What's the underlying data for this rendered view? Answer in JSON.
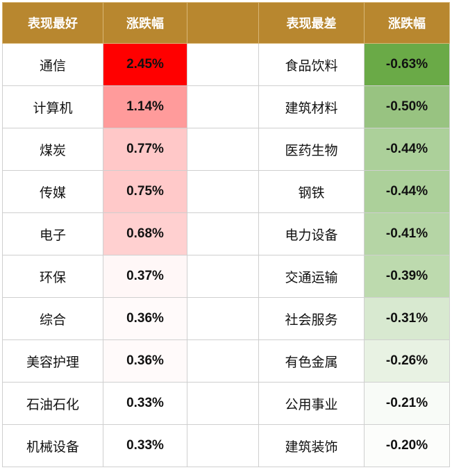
{
  "table": {
    "headers": {
      "best_name": "表现最好",
      "best_change": "涨跌幅",
      "worst_name": "表现最差",
      "worst_change": "涨跌幅"
    }
  },
  "chart_data": {
    "type": "table",
    "columns": [
      "表现最好",
      "涨跌幅",
      "表现最差",
      "涨跌幅"
    ],
    "best": [
      {
        "name": "通信",
        "change": "2.45%",
        "value": 2.45,
        "color": "#ff0000"
      },
      {
        "name": "计算机",
        "change": "1.14%",
        "value": 1.14,
        "color": "#ff9b9b"
      },
      {
        "name": "煤炭",
        "change": "0.77%",
        "value": 0.77,
        "color": "#ffc8c8"
      },
      {
        "name": "传媒",
        "change": "0.75%",
        "value": 0.75,
        "color": "#ffc9c9"
      },
      {
        "name": "电子",
        "change": "0.68%",
        "value": 0.68,
        "color": "#ffd0d0"
      },
      {
        "name": "环保",
        "change": "0.37%",
        "value": 0.37,
        "color": "#fff7f7"
      },
      {
        "name": "综合",
        "change": "0.36%",
        "value": 0.36,
        "color": "#fffafa"
      },
      {
        "name": "美容护理",
        "change": "0.36%",
        "value": 0.36,
        "color": "#fffafa"
      },
      {
        "name": "石油石化",
        "change": "0.33%",
        "value": 0.33,
        "color": "#ffffff"
      },
      {
        "name": "机械设备",
        "change": "0.33%",
        "value": 0.33,
        "color": "#ffffff"
      }
    ],
    "worst": [
      {
        "name": "食品饮料",
        "change": "-0.63%",
        "value": -0.63,
        "color": "#6aaa47"
      },
      {
        "name": "建筑材料",
        "change": "-0.50%",
        "value": -0.5,
        "color": "#98c381"
      },
      {
        "name": "医药生物",
        "change": "-0.44%",
        "value": -0.44,
        "color": "#acd09a"
      },
      {
        "name": "钢铁",
        "change": "-0.44%",
        "value": -0.44,
        "color": "#acd09a"
      },
      {
        "name": "电力设备",
        "change": "-0.41%",
        "value": -0.41,
        "color": "#b5d5a5"
      },
      {
        "name": "交通运输",
        "change": "-0.39%",
        "value": -0.39,
        "color": "#bddaae"
      },
      {
        "name": "社会服务",
        "change": "-0.31%",
        "value": -0.31,
        "color": "#d8e9d0"
      },
      {
        "name": "有色金属",
        "change": "-0.26%",
        "value": -0.26,
        "color": "#e8f2e3"
      },
      {
        "name": "公用事业",
        "change": "-0.21%",
        "value": -0.21,
        "color": "#f8fbf7"
      },
      {
        "name": "建筑装饰",
        "change": "-0.20%",
        "value": -0.2,
        "color": "#fcfdfb"
      }
    ]
  }
}
